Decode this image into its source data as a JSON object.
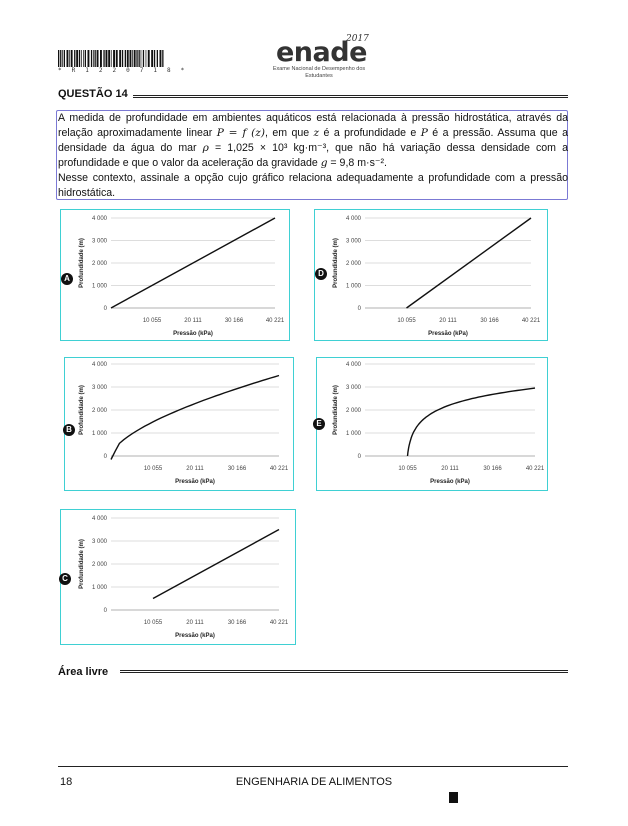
{
  "header": {
    "barcode_digits": "* R 1 2 2 0 7 1 8 *",
    "logo_text": "enade",
    "logo_year": "2017",
    "logo_subtitle": "Exame Nacional de Desempenho dos Estudantes"
  },
  "question": {
    "title": "QUESTÃO 14",
    "paragraph1_parts": [
      "A medida de profundidade em ambientes aquáticos está relacionada à pressão hidrostática, através da relação aproximadamente linear ",
      "P = f (z)",
      ", em que ",
      "z",
      " é a profundidade e ",
      "P",
      " é a pressão. Assuma que a densidade da água do mar ",
      "ρ",
      " = 1,025 × 10³ kg·m⁻³, que não há variação dessa densidade com a profundidade e que o valor da aceleração da gravidade ",
      "g",
      " = 9,8 m·s⁻²."
    ],
    "paragraph2": "Nesse contexto, assinale a opção cujo gráfico relaciona adequadamente a profundidade com a pressão hidrostática."
  },
  "chart_data": [
    {
      "option": "A",
      "type": "line",
      "shape": "linear",
      "x": [
        0,
        40221
      ],
      "y": [
        0,
        4000
      ],
      "xlabel": "Pressão (kPa)",
      "ylabel": "Profundidade (m)",
      "x_ticks": [
        "10 055",
        "20 111",
        "30 166",
        "40 221"
      ],
      "y_ticks": [
        "0",
        "1 000",
        "2 000",
        "3 000",
        "4 000"
      ],
      "xlim": [
        0,
        40221
      ],
      "ylim": [
        0,
        4000
      ],
      "grid": "horizontal"
    },
    {
      "option": "D",
      "type": "line",
      "shape": "linear",
      "x": [
        10055,
        40221
      ],
      "y": [
        0,
        4000
      ],
      "xlabel": "Pressão (kPa)",
      "ylabel": "Profundidade (m)",
      "x_ticks": [
        "10 055",
        "20 111",
        "30 166",
        "40 221"
      ],
      "y_ticks": [
        "0",
        "1 000",
        "2 000",
        "3 000",
        "4 000"
      ],
      "xlim": [
        0,
        40221
      ],
      "ylim": [
        0,
        4000
      ],
      "grid": "horizontal"
    },
    {
      "option": "B",
      "type": "line",
      "shape": "concave",
      "x": [
        0,
        5000,
        10055,
        15000,
        20111,
        25000,
        30166,
        35000,
        40221
      ],
      "y": [
        0,
        650,
        1250,
        1750,
        2200,
        2600,
        2950,
        3250,
        3500
      ],
      "xlabel": "Pressão (kPa)",
      "ylabel": "Profundidade (m)",
      "x_ticks": [
        "10 055",
        "20 111",
        "30 166",
        "40 221"
      ],
      "y_ticks": [
        "0",
        "1 000",
        "2 000",
        "3 000",
        "4 000"
      ],
      "xlim": [
        0,
        40221
      ],
      "ylim": [
        0,
        4000
      ],
      "grid": "horizontal"
    },
    {
      "option": "E",
      "type": "line",
      "shape": "logarithmic",
      "x": [
        10055,
        10300,
        11000,
        12500,
        15000,
        20111,
        25000,
        30166,
        35000,
        40221
      ],
      "y": [
        0,
        700,
        1250,
        1650,
        1950,
        2250,
        2450,
        2650,
        2800,
        2950
      ],
      "xlabel": "Pressão (kPa)",
      "ylabel": "Profundidade (m)",
      "x_ticks": [
        "10 055",
        "20 111",
        "30 166",
        "40 221"
      ],
      "y_ticks": [
        "0",
        "1 000",
        "2 000",
        "3 000",
        "4 000"
      ],
      "xlim": [
        0,
        40221
      ],
      "ylim": [
        0,
        4000
      ],
      "grid": "horizontal"
    },
    {
      "option": "C",
      "type": "line",
      "shape": "linear",
      "x": [
        10055,
        40221
      ],
      "y": [
        500,
        3500
      ],
      "xlabel": "Pressão (kPa)",
      "ylabel": "Profundidade (m)",
      "x_ticks": [
        "10 055",
        "20 111",
        "30 166",
        "40 221"
      ],
      "y_ticks": [
        "0",
        "1 000",
        "2 000",
        "3 000",
        "4 000"
      ],
      "xlim": [
        0,
        40221
      ],
      "ylim": [
        0,
        4000
      ],
      "grid": "horizontal"
    }
  ],
  "area_livre": "Área livre",
  "footer": {
    "page_number": "18",
    "course": "ENGENHARIA DE ALIMENTOS"
  },
  "colors": {
    "chart_border": "#3fd0d3",
    "question_box": "#7b79d4"
  }
}
